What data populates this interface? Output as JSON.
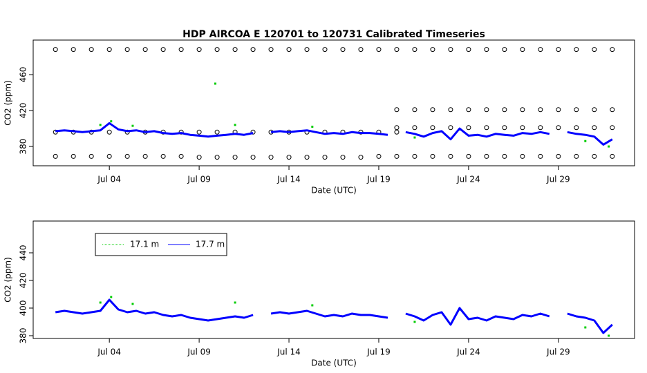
{
  "chart_data": [
    {
      "type": "scatter",
      "title": "HDP   AIRCOA  E   120701  to  120731   Calibrated Timeseries",
      "xlabel": "Date (UTC)",
      "ylabel": "CO2 (ppm)",
      "xlim": [
        -0.24,
        33.24
      ],
      "ylim": [
        358.5,
        498.5
      ],
      "xticks": [
        {
          "value": 4,
          "label": "Jul 04"
        },
        {
          "value": 9,
          "label": "Jul 09"
        },
        {
          "value": 14,
          "label": "Jul 14"
        },
        {
          "value": 19,
          "label": "Jul 19"
        },
        {
          "value": 24,
          "label": "Jul 24"
        },
        {
          "value": 29,
          "label": "Jul 29"
        }
      ],
      "yticks": [
        380,
        420,
        460
      ],
      "series": [
        {
          "color": "#000000",
          "style": "circle",
          "x": [
            1,
            2,
            3,
            4,
            5,
            6,
            7,
            8,
            9,
            10,
            11,
            12,
            13,
            14,
            15,
            16,
            17,
            18,
            19,
            20,
            21,
            22,
            23,
            24,
            25,
            26,
            27,
            28,
            29,
            30,
            31,
            32
          ],
          "values": [
            488,
            488,
            488,
            488,
            488,
            488,
            488,
            488,
            488,
            488,
            488,
            488,
            488,
            488,
            488,
            488,
            488,
            488,
            488,
            488,
            488,
            488,
            488,
            488,
            488,
            488,
            488,
            488,
            488,
            488,
            488,
            488
          ]
        },
        {
          "color": "#000000",
          "style": "circle",
          "x": [
            1,
            2,
            3,
            4,
            5,
            6,
            7,
            8,
            9,
            10,
            11,
            12,
            13,
            14,
            15,
            16,
            17,
            18,
            19,
            20,
            21,
            22,
            23,
            24,
            25,
            26,
            27,
            28,
            29,
            30,
            31,
            32
          ],
          "values": [
            369,
            369,
            369,
            369,
            369,
            369,
            369,
            369,
            368,
            368,
            368,
            368,
            368,
            368,
            368,
            368,
            368,
            368,
            369,
            369,
            369,
            369,
            369,
            369,
            369,
            369,
            369,
            369,
            369,
            369,
            369,
            369
          ]
        },
        {
          "color": "#000000",
          "style": "circle",
          "x": [
            1,
            2,
            3,
            4,
            5,
            6,
            7,
            8,
            9,
            10,
            11,
            12,
            13,
            14,
            15,
            16,
            17,
            18,
            19,
            20
          ],
          "values": [
            396,
            396,
            396,
            396,
            396,
            396,
            396,
            396,
            396,
            396,
            396,
            396,
            396,
            396,
            396,
            396,
            396,
            396,
            396,
            396
          ]
        },
        {
          "color": "#000000",
          "style": "circle",
          "x": [
            20,
            21,
            22,
            23,
            24,
            25,
            26,
            27,
            28,
            29,
            30,
            31,
            32
          ],
          "values": [
            421,
            421,
            421,
            421,
            421,
            421,
            421,
            421,
            421,
            421,
            421,
            421,
            421
          ]
        },
        {
          "color": "#000000",
          "style": "circle",
          "x": [
            20,
            21,
            22,
            23,
            24,
            25,
            26,
            27,
            28,
            29,
            30,
            31,
            32
          ],
          "values": [
            401,
            401,
            401,
            401,
            401,
            401,
            401,
            401,
            401,
            401,
            401,
            401,
            401
          ]
        },
        {
          "color": "#00cc00",
          "style": "point",
          "x": [
            3.5,
            4.1,
            5.3,
            9.9,
            11,
            15.3,
            21,
            23.5,
            30.5,
            31.8
          ],
          "values": [
            404,
            408,
            403,
            450,
            404,
            402,
            390,
            399,
            386,
            380
          ]
        },
        {
          "color": "#0000ff",
          "style": "line",
          "x": [
            1,
            1.5,
            2,
            2.5,
            3,
            3.5,
            4,
            4.5,
            5,
            5.5,
            6,
            6.5,
            7,
            7.5,
            8,
            8.5,
            9,
            9.5,
            10,
            10.5,
            11,
            11.5,
            12,
            12.5,
            13,
            13.5,
            14,
            14.5,
            15,
            15.5,
            16,
            16.5,
            17,
            17.5,
            18,
            18.5,
            19,
            19.5,
            20,
            20.5,
            21,
            21.5,
            22,
            22.5,
            23,
            23.5,
            24,
            24.5,
            25,
            25.5,
            26,
            26.5,
            27,
            27.5,
            28,
            28.5,
            29,
            29.5,
            30,
            30.5,
            31,
            31.5,
            32
          ],
          "values": [
            397,
            398,
            397,
            396,
            397,
            398,
            406,
            399,
            397,
            398,
            396,
            397,
            395,
            394,
            395,
            393,
            392,
            391,
            392,
            393,
            394,
            393,
            395,
            null,
            396,
            397,
            396,
            397,
            398,
            396,
            394,
            395,
            394,
            396,
            395,
            395,
            394,
            393,
            null,
            396,
            394,
            391,
            395,
            397,
            388,
            400,
            392,
            393,
            391,
            394,
            393,
            392,
            395,
            394,
            396,
            394,
            null,
            396,
            394,
            393,
            391,
            382,
            388
          ]
        }
      ]
    },
    {
      "type": "scatter",
      "xlabel": "Date (UTC)",
      "ylabel": "CO2 (ppm)",
      "xlim": [
        -0.24,
        33.24
      ],
      "ylim": [
        378,
        463
      ],
      "xticks": [
        {
          "value": 4,
          "label": "Jul 04"
        },
        {
          "value": 9,
          "label": "Jul 09"
        },
        {
          "value": 14,
          "label": "Jul 14"
        },
        {
          "value": 19,
          "label": "Jul 19"
        },
        {
          "value": 24,
          "label": "Jul 24"
        },
        {
          "value": 29,
          "label": "Jul 29"
        }
      ],
      "yticks": [
        380,
        400,
        420,
        440
      ],
      "legend": "topleft",
      "series": [
        {
          "name": "17.1 m",
          "color": "#00cc00",
          "style": "point",
          "x": [
            3.5,
            4.1,
            5.3,
            9.9,
            11,
            15.3,
            21,
            23.5,
            30.5,
            31.8
          ],
          "values": [
            404,
            408,
            403,
            450,
            404,
            402,
            390,
            399,
            386,
            380
          ]
        },
        {
          "name": "17.7 m",
          "color": "#0000ff",
          "style": "line",
          "x": [
            1,
            1.5,
            2,
            2.5,
            3,
            3.5,
            4,
            4.5,
            5,
            5.5,
            6,
            6.5,
            7,
            7.5,
            8,
            8.5,
            9,
            9.5,
            10,
            10.5,
            11,
            11.5,
            12,
            12.5,
            13,
            13.5,
            14,
            14.5,
            15,
            15.5,
            16,
            16.5,
            17,
            17.5,
            18,
            18.5,
            19,
            19.5,
            20,
            20.5,
            21,
            21.5,
            22,
            22.5,
            23,
            23.5,
            24,
            24.5,
            25,
            25.5,
            26,
            26.5,
            27,
            27.5,
            28,
            28.5,
            29,
            29.5,
            30,
            30.5,
            31,
            31.5,
            32
          ],
          "values": [
            397,
            398,
            397,
            396,
            397,
            398,
            406,
            399,
            397,
            398,
            396,
            397,
            395,
            394,
            395,
            393,
            392,
            391,
            392,
            393,
            394,
            393,
            395,
            null,
            396,
            397,
            396,
            397,
            398,
            396,
            394,
            395,
            394,
            396,
            395,
            395,
            394,
            393,
            null,
            396,
            394,
            391,
            395,
            397,
            388,
            400,
            392,
            393,
            391,
            394,
            393,
            392,
            395,
            394,
            396,
            394,
            null,
            396,
            394,
            393,
            391,
            382,
            388
          ]
        }
      ]
    }
  ]
}
